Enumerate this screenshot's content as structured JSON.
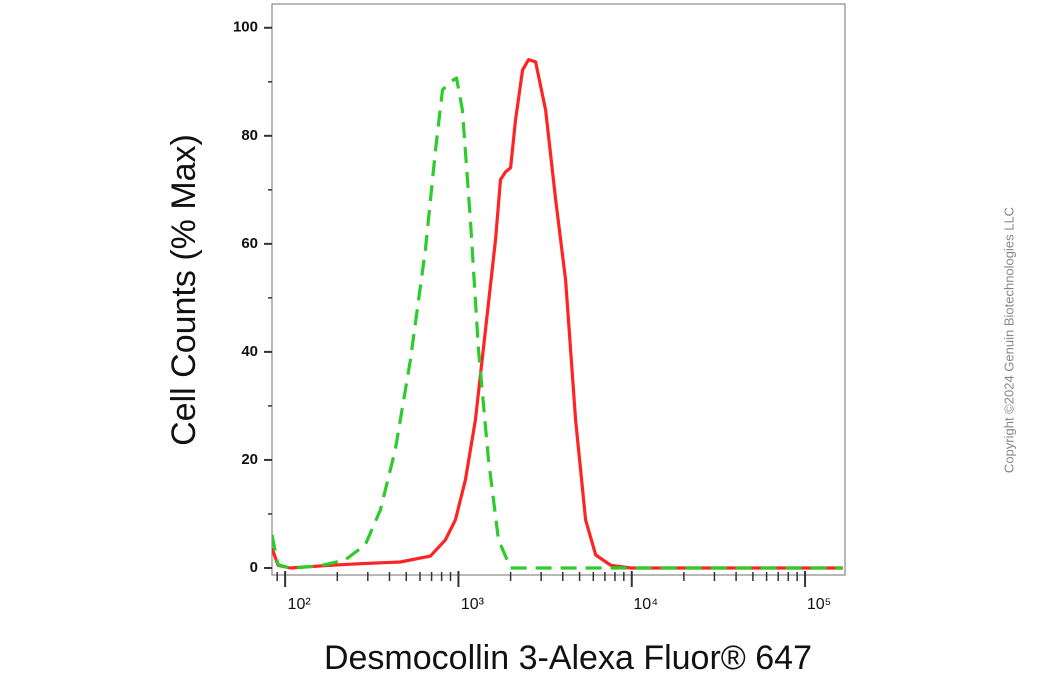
{
  "chart_data": {
    "type": "line",
    "x_label": "Desmocollin 3-Alexa Fluor® 647",
    "y_label": "Cell Counts (% Max)",
    "xscale": "log",
    "xlim": [
      84,
      170000
    ],
    "ylim": [
      -1.3,
      104.4
    ],
    "xticks": [
      {
        "value": 100,
        "label": "10²"
      },
      {
        "value": 1000,
        "label": "10³"
      },
      {
        "value": 10000,
        "label": "10⁴"
      },
      {
        "value": 100000,
        "label": "10⁵"
      }
    ],
    "xminorticks": [
      90,
      200,
      300,
      400,
      500,
      600,
      700,
      800,
      900,
      2000,
      3000,
      4000,
      5000,
      6000,
      7000,
      8000,
      9000,
      20000,
      30000,
      40000,
      50000,
      60000,
      70000,
      80000,
      90000
    ],
    "yticks": [
      0,
      20,
      40,
      60,
      80,
      100
    ],
    "yminorticks": [
      10,
      30,
      50,
      70,
      90
    ],
    "grid": false,
    "series": [
      {
        "color": "#ff2424",
        "dashed": false,
        "x": [
          84,
          91,
          107,
          182,
          272,
          462,
          689,
          841,
          961,
          1097,
          1253,
          1432,
          1636,
          1749,
          1870,
          1999,
          2135,
          2344,
          2541,
          2788,
          3185,
          3639,
          4152,
          4742,
          5418,
          6194,
          7568,
          9862,
          165000
        ],
        "values": [
          3.7,
          0.5,
          0,
          0.5,
          0.8,
          1.1,
          2.2,
          5.2,
          8.9,
          16.3,
          27.4,
          44.1,
          60.7,
          71.9,
          73.3,
          74.1,
          82.9,
          92.2,
          94.1,
          93.7,
          84.8,
          68.1,
          53.3,
          27.4,
          8.9,
          2.4,
          0.5,
          0,
          0
        ]
      },
      {
        "color": "#2ccc2c",
        "dashed": true,
        "x": [
          84,
          91,
          107,
          159,
          222,
          290,
          354,
          432,
          528,
          645,
          737,
          809,
          900,
          974,
          1054,
          1173,
          1305,
          1490,
          1702,
          1999,
          2609,
          165000
        ],
        "values": [
          6.1,
          0.6,
          0,
          0.4,
          1.5,
          4.3,
          10.7,
          21.9,
          38.5,
          58.9,
          77.4,
          88.5,
          90,
          90.7,
          84.8,
          64.4,
          40.4,
          20,
          5.2,
          0,
          0,
          0
        ]
      }
    ]
  },
  "copyright": "Copyright ©2024 Genuin Biotechnologies LLC"
}
